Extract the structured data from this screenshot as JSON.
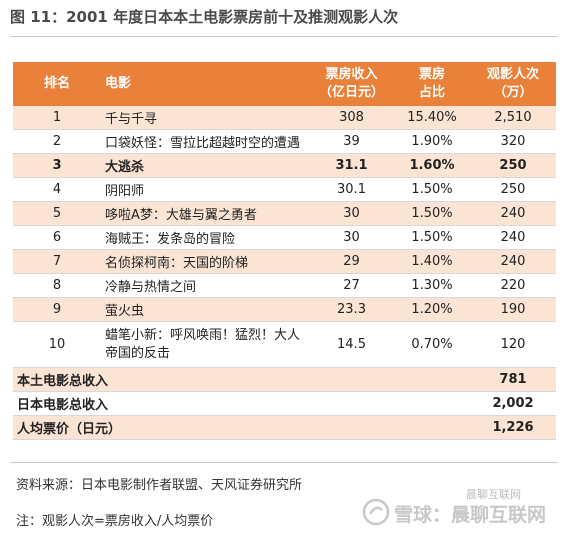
{
  "title": "图 11：2001 年度日本本土电影票房前十及推测观影人次",
  "headers": {
    "rank": "排名",
    "movie": "电影",
    "box_office": [
      "票房收入",
      "（亿日元）"
    ],
    "share": [
      "票房",
      "占比"
    ],
    "viewers": [
      "观影人次",
      "（万）"
    ]
  },
  "rows": [
    {
      "rank": "1",
      "movie": [
        "千与千寻"
      ],
      "box_office": "308",
      "share": "15.40%",
      "viewers": "2,510"
    },
    {
      "rank": "2",
      "movie": [
        "口袋妖怪：雪拉比超越时空的遭遇"
      ],
      "box_office": "39",
      "share": "1.90%",
      "viewers": "320"
    },
    {
      "rank": "3",
      "movie": [
        "大逃杀"
      ],
      "box_office": "31.1",
      "share": "1.60%",
      "viewers": "250"
    },
    {
      "rank": "4",
      "movie": [
        "阴阳师"
      ],
      "box_office": "30.1",
      "share": "1.50%",
      "viewers": "250"
    },
    {
      "rank": "5",
      "movie": [
        "哆啦A梦：大雄与翼之勇者"
      ],
      "box_office": "30",
      "share": "1.50%",
      "viewers": "240"
    },
    {
      "rank": "6",
      "movie": [
        "海贼王：发条岛的冒险"
      ],
      "box_office": "30",
      "share": "1.50%",
      "viewers": "240"
    },
    {
      "rank": "7",
      "movie": [
        "名侦探柯南：天国的阶梯"
      ],
      "box_office": "29",
      "share": "1.40%",
      "viewers": "240"
    },
    {
      "rank": "8",
      "movie": [
        "冷静与热情之间"
      ],
      "box_office": "27",
      "share": "1.30%",
      "viewers": "220"
    },
    {
      "rank": "9",
      "movie": [
        "萤火虫"
      ],
      "box_office": "23.3",
      "share": "1.20%",
      "viewers": "190"
    },
    {
      "rank": "10",
      "movie": [
        "蜡笔小新：呼风唤雨！猛烈！大人",
        "帝国的反击"
      ],
      "box_office": "14.5",
      "share": "0.70%",
      "viewers": "120"
    }
  ],
  "totals": [
    {
      "label": "本土电影总收入",
      "value": "781"
    },
    {
      "label": "日本电影总收入",
      "value": "2,002"
    },
    {
      "label": "人均票价（日元）",
      "value": "1,226"
    }
  ],
  "source": "资料来源：日本电影制作者联盟、天风证券研究所",
  "note": "注：观影人次=票房收入/人均票价",
  "watermark": {
    "text": "雪球：晨聊互联网",
    "small": "晨聊互联网"
  }
}
